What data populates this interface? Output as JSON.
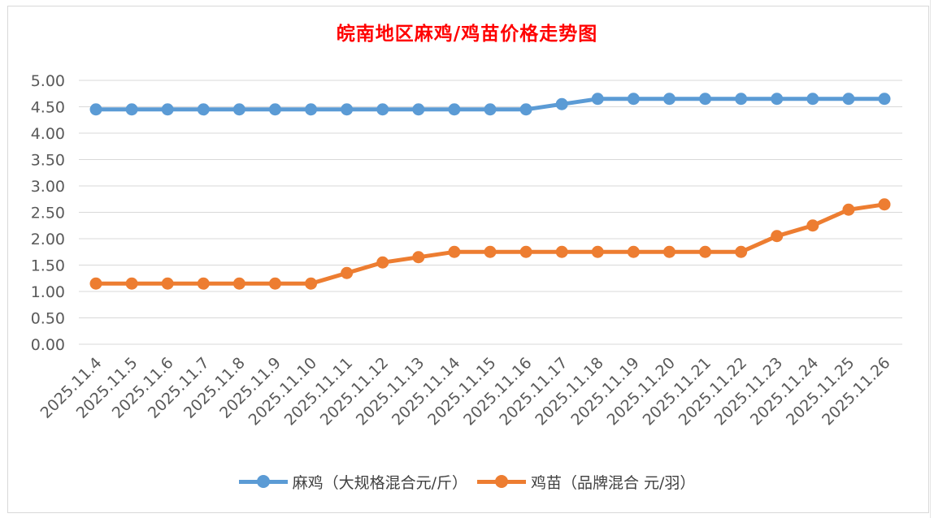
{
  "chart_data": {
    "type": "line",
    "title": "皖南地区麻鸡/鸡苗价格走势图",
    "categories": [
      "2025.11.4",
      "2025.11.5",
      "2025.11.6",
      "2025.11.7",
      "2025.11.8",
      "2025.11.9",
      "2025.11.10",
      "2025.11.11",
      "2025.11.12",
      "2025.11.13",
      "2025.11.14",
      "2025.11.15",
      "2025.11.16",
      "2025.11.17",
      "2025.11.18",
      "2025.11.19",
      "2025.11.20",
      "2025.11.21",
      "2025.11.22",
      "2025.11.23",
      "2025.11.24",
      "2025.11.25",
      "2025.11.26"
    ],
    "yticks": [
      "0.00",
      "0.50",
      "1.00",
      "1.50",
      "2.00",
      "2.50",
      "3.00",
      "3.50",
      "4.00",
      "4.50",
      "5.00"
    ],
    "ylim": [
      0,
      5
    ],
    "grid": true,
    "legend_position": "bottom",
    "series": [
      {
        "name": "麻鸡（大规格混合元/斤）",
        "color": "#5b9bd5",
        "values": [
          4.45,
          4.45,
          4.45,
          4.45,
          4.45,
          4.45,
          4.45,
          4.45,
          4.45,
          4.45,
          4.45,
          4.45,
          4.45,
          4.55,
          4.65,
          4.65,
          4.65,
          4.65,
          4.65,
          4.65,
          4.65,
          4.65,
          4.65
        ]
      },
      {
        "name": "鸡苗（品牌混合 元/羽）",
        "color": "#ed7d31",
        "values": [
          1.15,
          1.15,
          1.15,
          1.15,
          1.15,
          1.15,
          1.15,
          1.35,
          1.55,
          1.65,
          1.75,
          1.75,
          1.75,
          1.75,
          1.75,
          1.75,
          1.75,
          1.75,
          1.75,
          2.05,
          2.25,
          2.55,
          2.65
        ]
      }
    ]
  }
}
